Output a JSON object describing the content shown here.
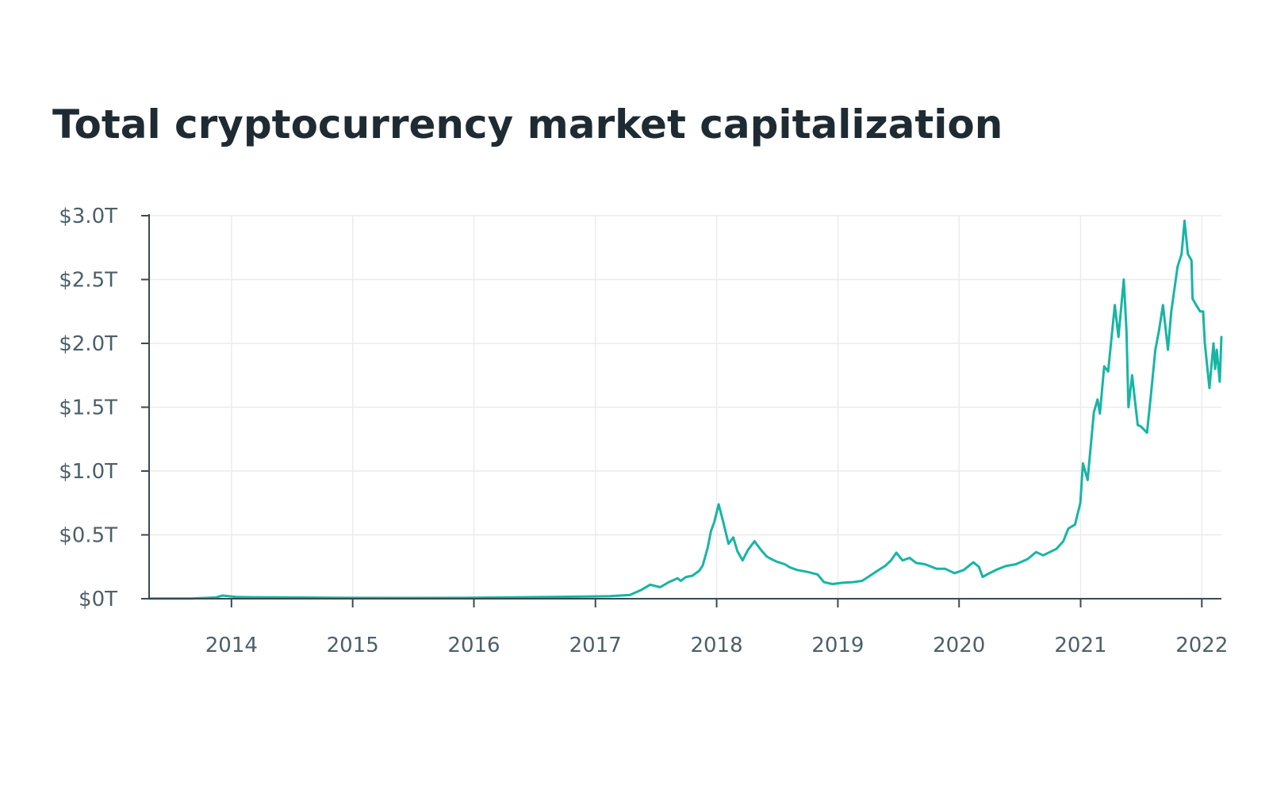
{
  "chart_data": {
    "type": "line",
    "title": "Total cryptocurrency market capitalization",
    "xlabel": "",
    "ylabel": "",
    "x_ticks": [
      "2014",
      "2015",
      "2016",
      "2017",
      "2018",
      "2019",
      "2020",
      "2021",
      "2022"
    ],
    "y_ticks": [
      {
        "value": 0,
        "label": "$0T"
      },
      {
        "value": 0.5,
        "label": "$0.5T"
      },
      {
        "value": 1.0,
        "label": "$1.0T"
      },
      {
        "value": 1.5,
        "label": "$1.5T"
      },
      {
        "value": 2.0,
        "label": "$2.0T"
      },
      {
        "value": 2.5,
        "label": "$2.5T"
      },
      {
        "value": 3.0,
        "label": "$3.0T"
      }
    ],
    "xlim": [
      "2013-04-28",
      "2022-03-01"
    ],
    "ylim": [
      0,
      3.0
    ],
    "grid": true,
    "line_color": "#17b5a4",
    "series": [
      {
        "x": [
          "2013-04-28",
          "2013-09-01",
          "2013-11-15",
          "2013-12-05",
          "2014-01-15",
          "2014-03-01",
          "2014-07-01",
          "2014-12-01",
          "2015-06-01",
          "2015-12-01",
          "2016-06-01",
          "2016-12-01",
          "2017-02-15",
          "2017-04-15",
          "2017-05-20",
          "2017-06-15",
          "2017-07-15",
          "2017-08-10",
          "2017-09-05",
          "2017-09-15",
          "2017-10-01",
          "2017-10-20",
          "2017-11-10",
          "2017-11-20",
          "2017-12-05",
          "2017-12-15",
          "2017-12-25",
          "2018-01-07",
          "2018-01-20",
          "2018-02-06",
          "2018-02-20",
          "2018-03-05",
          "2018-03-20",
          "2018-04-05",
          "2018-04-25",
          "2018-05-15",
          "2018-06-01",
          "2018-06-15",
          "2018-07-01",
          "2018-07-25",
          "2018-08-10",
          "2018-09-01",
          "2018-10-01",
          "2018-11-01",
          "2018-11-20",
          "2018-12-15",
          "2019-01-15",
          "2019-02-15",
          "2019-03-15",
          "2019-04-05",
          "2019-05-01",
          "2019-05-25",
          "2019-06-10",
          "2019-06-26",
          "2019-07-15",
          "2019-08-05",
          "2019-08-25",
          "2019-09-20",
          "2019-10-25",
          "2019-11-20",
          "2019-12-18",
          "2020-01-15",
          "2020-02-13",
          "2020-03-01",
          "2020-03-12",
          "2020-03-25",
          "2020-04-25",
          "2020-05-20",
          "2020-06-20",
          "2020-07-25",
          "2020-08-20",
          "2020-09-10",
          "2020-10-20",
          "2020-11-10",
          "2020-11-25",
          "2020-12-15",
          "2020-12-31",
          "2021-01-08",
          "2021-01-22",
          "2021-02-10",
          "2021-02-21",
          "2021-02-28",
          "2021-03-13",
          "2021-03-25",
          "2021-04-14",
          "2021-04-25",
          "2021-05-11",
          "2021-05-19",
          "2021-05-25",
          "2021-06-05",
          "2021-06-22",
          "2021-07-01",
          "2021-07-20",
          "2021-08-01",
          "2021-08-14",
          "2021-08-25",
          "2021-09-06",
          "2021-09-21",
          "2021-10-01",
          "2021-10-20",
          "2021-11-01",
          "2021-11-10",
          "2021-11-20",
          "2021-12-01",
          "2021-12-04",
          "2021-12-15",
          "2021-12-27",
          "2022-01-05",
          "2022-01-10",
          "2022-01-24",
          "2022-02-05",
          "2022-02-10",
          "2022-02-15",
          "2022-02-24",
          "2022-03-01"
        ],
        "y": [
          1.5,
          1.5,
          10,
          25,
          14,
          12,
          10,
          7,
          6,
          7,
          12,
          17,
          20,
          30,
          70,
          110,
          90,
          130,
          160,
          140,
          170,
          180,
          220,
          260,
          400,
          530,
          600,
          740,
          610,
          430,
          480,
          370,
          300,
          380,
          450,
          380,
          330,
          310,
          290,
          270,
          245,
          225,
          210,
          190,
          130,
          115,
          125,
          130,
          140,
          175,
          220,
          260,
          300,
          360,
          300,
          320,
          280,
          270,
          235,
          235,
          200,
          225,
          285,
          250,
          170,
          190,
          230,
          255,
          270,
          310,
          365,
          340,
          390,
          450,
          550,
          580,
          750,
          1060,
          930,
          1460,
          1560,
          1450,
          1820,
          1780,
          2300,
          2050,
          2500,
          2100,
          1500,
          1750,
          1360,
          1350,
          1300,
          1600,
          1950,
          2100,
          2300,
          1950,
          2250,
          2600,
          2700,
          2960,
          2700,
          2650,
          2350,
          2300,
          2250,
          2250,
          2000,
          1650,
          2000,
          1800,
          1950,
          1700,
          2050
        ]
      }
    ]
  }
}
